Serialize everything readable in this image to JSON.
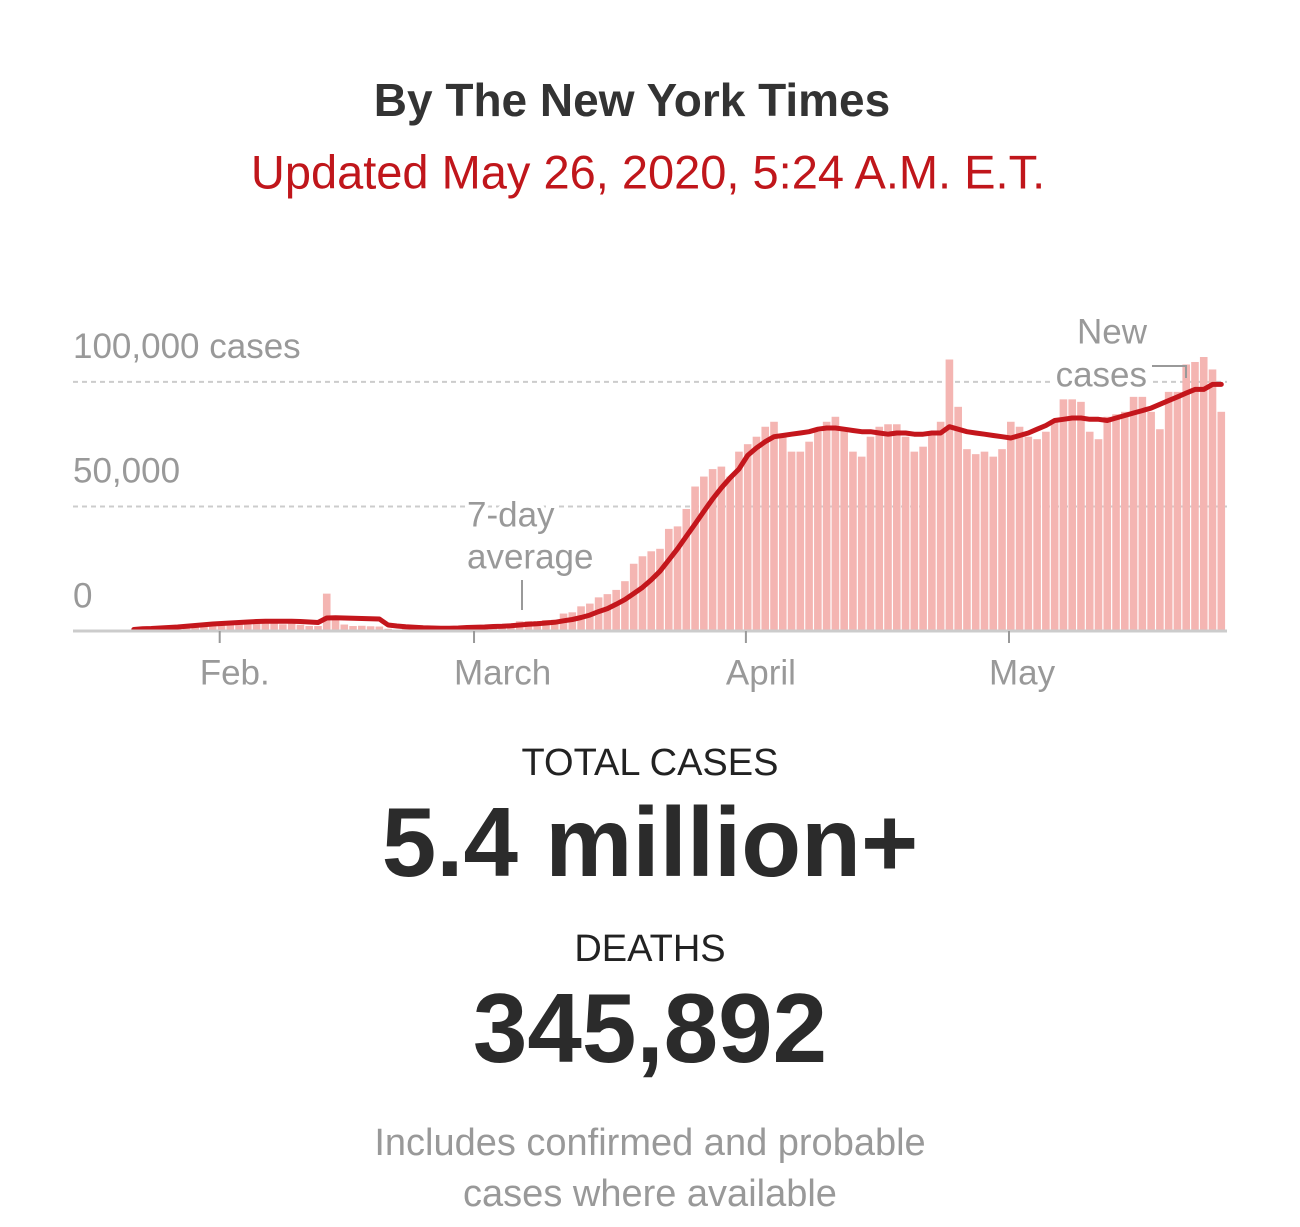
{
  "header": {
    "byline": "By The New York Times",
    "updated": "Updated May 26, 2020, 5:24 A.M. E.T."
  },
  "chart_data": {
    "type": "bar-line",
    "categories": [
      null,
      null,
      null,
      null,
      null,
      null,
      null,
      null,
      null,
      null,
      "Feb.",
      null,
      null,
      null,
      null,
      null,
      null,
      null,
      null,
      null,
      null,
      null,
      null,
      null,
      null,
      null,
      null,
      null,
      null,
      null,
      null,
      null,
      null,
      null,
      null,
      null,
      null,
      null,
      null,
      "March",
      null,
      null,
      null,
      null,
      null,
      null,
      null,
      null,
      null,
      null,
      null,
      null,
      null,
      null,
      null,
      null,
      null,
      null,
      null,
      null,
      null,
      null,
      null,
      null,
      null,
      null,
      null,
      null,
      null,
      null,
      "April",
      null,
      null,
      null,
      null,
      null,
      null,
      null,
      null,
      null,
      null,
      null,
      null,
      null,
      null,
      null,
      null,
      null,
      null,
      null,
      null,
      null,
      null,
      null,
      null,
      null,
      null,
      null,
      null,
      null,
      "May",
      null,
      null,
      null,
      null,
      null,
      null,
      null,
      null,
      null,
      null,
      null,
      null,
      null,
      null,
      null,
      null,
      null,
      null,
      null,
      null,
      null,
      null,
      null,
      null
    ],
    "series": [
      {
        "kind": "bar",
        "color": "#f4b5b2",
        "values": [
          600,
          200,
          300,
          700,
          700,
          800,
          1800,
          1700,
          2000,
          2100,
          2600,
          2800,
          3200,
          3900,
          3700,
          3200,
          3400,
          2700,
          3000,
          2500,
          2000,
          2000,
          15000,
          5100,
          2600,
          2000,
          2100,
          1900,
          1800,
          900,
          600,
          1000,
          1000,
          600,
          800,
          1100,
          1300,
          1500,
          2000,
          2300,
          2000,
          2400,
          2600,
          2900,
          3900,
          4000,
          4000,
          4400,
          4500,
          7000,
          7500,
          9900,
          11000,
          13500,
          14800,
          16500,
          20000,
          27000,
          30000,
          32000,
          33000,
          41000,
          42000,
          49000,
          58000,
          62000,
          65000,
          66000,
          62000,
          72000,
          75000,
          78000,
          82000,
          84000,
          78000,
          72000,
          72000,
          76000,
          80000,
          84000,
          86000,
          81000,
          72000,
          70000,
          78000,
          82000,
          83000,
          83000,
          78000,
          72000,
          74000,
          80000,
          84000,
          109000,
          90000,
          73000,
          71000,
          72000,
          70000,
          73000,
          84000,
          82000,
          78000,
          77000,
          80000,
          84000,
          93000,
          93000,
          92000,
          80000,
          77000,
          86000,
          87000,
          88000,
          94000,
          94000,
          88000,
          81000,
          96000,
          96000,
          107000,
          108000,
          110000,
          105000,
          88000
        ]
      },
      {
        "kind": "line",
        "color": "#c4161c",
        "values": [
          600,
          900,
          1000,
          1200,
          1400,
          1600,
          1900,
          2200,
          2500,
          2800,
          3000,
          3200,
          3400,
          3600,
          3800,
          3900,
          3900,
          3900,
          3900,
          3800,
          3600,
          3400,
          5200,
          5300,
          5200,
          5100,
          5000,
          4900,
          4800,
          2400,
          2000,
          1700,
          1500,
          1300,
          1200,
          1100,
          1100,
          1200,
          1400,
          1500,
          1600,
          1800,
          1900,
          2100,
          2400,
          2700,
          2900,
          3200,
          3500,
          4100,
          4600,
          5400,
          6400,
          7800,
          9000,
          10700,
          12600,
          15000,
          17500,
          20500,
          24000,
          28500,
          33000,
          38000,
          43000,
          48000,
          53000,
          57500,
          61500,
          65000,
          70500,
          73500,
          76000,
          78000,
          78500,
          79000,
          79500,
          80000,
          81000,
          81500,
          81500,
          81000,
          80500,
          80000,
          80000,
          79500,
          79000,
          79500,
          79500,
          79000,
          79000,
          79500,
          79500,
          82000,
          81000,
          80000,
          79500,
          79000,
          78500,
          78000,
          77500,
          78500,
          79500,
          81000,
          82500,
          84500,
          85000,
          85500,
          85500,
          85000,
          85000,
          84500,
          85500,
          86500,
          87500,
          88500,
          89500,
          91000,
          92500,
          94000,
          95500,
          97000,
          97000,
          99000,
          99000
        ]
      }
    ],
    "ylim": [
      0,
      110000
    ],
    "yticks": [
      0,
      {
        "value": 50000,
        "label": "50,000"
      },
      {
        "value": 100000,
        "label": "100,000 cases"
      }
    ],
    "grid": true,
    "annotations": [
      {
        "lines": [
          "7-day",
          "average"
        ]
      },
      {
        "lines": [
          "New",
          "cases"
        ]
      }
    ]
  },
  "stats": [
    {
      "label": "TOTAL CASES",
      "value": "5.4 million+"
    },
    {
      "label": "DEATHS",
      "value": "345,892"
    }
  ],
  "note": [
    "Includes confirmed and probable",
    "cases where available"
  ]
}
